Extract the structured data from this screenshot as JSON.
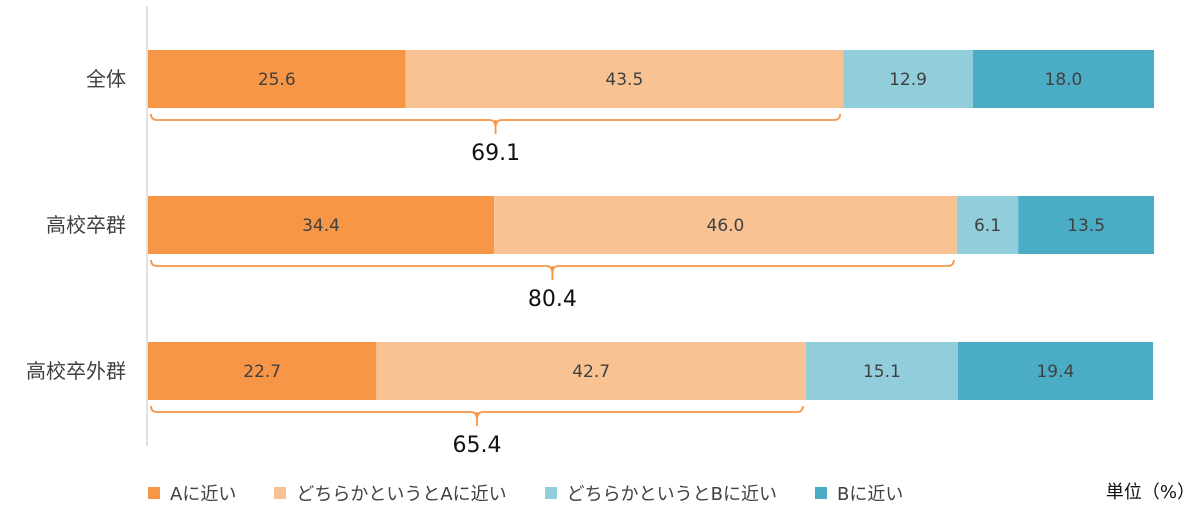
{
  "chart_data": {
    "type": "bar",
    "orientation": "horizontal",
    "stacked": true,
    "categories": [
      "全体",
      "高校卒群",
      "高校卒外群"
    ],
    "series": [
      {
        "name": "Aに近い",
        "color": "#F79646",
        "values": [
          25.6,
          34.4,
          22.7
        ]
      },
      {
        "name": "どちらかというとAに近い",
        "color": "#F9C293",
        "values": [
          43.5,
          46.0,
          42.7
        ]
      },
      {
        "name": "どちらかというとBに近い",
        "color": "#92CDDC",
        "values": [
          12.9,
          6.1,
          15.1
        ]
      },
      {
        "name": "Bに近い",
        "color": "#4BACC6",
        "values": [
          18.0,
          13.5,
          19.4
        ]
      }
    ],
    "brace_totals": [
      69.1,
      80.4,
      65.4
    ],
    "brace_color": "#F79646",
    "xlim": [
      0,
      100
    ],
    "unit": "単位（%）",
    "legend_position": "bottom",
    "grid": false
  }
}
